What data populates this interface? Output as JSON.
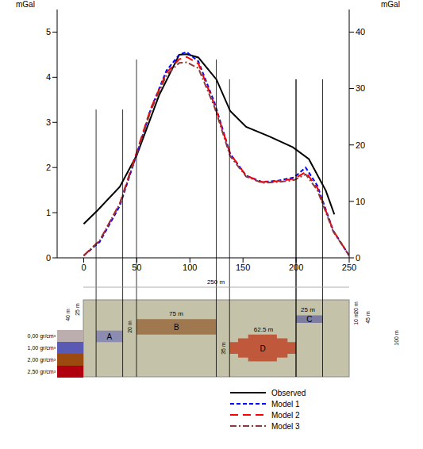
{
  "chart_data": {
    "type": "line",
    "y_label": "mGal",
    "y2_label": "mGal",
    "xlim": [
      -25,
      250
    ],
    "xticks": [
      0,
      50,
      100,
      150,
      200,
      250
    ],
    "ylim": [
      0,
      5.5
    ],
    "yticks": [
      0,
      1,
      2,
      3,
      4,
      5
    ],
    "y2lim": [
      0,
      44
    ],
    "y2ticks": [
      0,
      10,
      20,
      30,
      40
    ],
    "grid": false,
    "legend": "bottom",
    "series": [
      {
        "name": "Observed",
        "color": "#000000",
        "line_style": "solid",
        "axis": "y2",
        "x": [
          0,
          13,
          34,
          50,
          71,
          90,
          97,
          108,
          125,
          138,
          153,
          175,
          197,
          212,
          228,
          236
        ],
        "values": [
          6.0,
          8.4,
          12.6,
          18.2,
          28.8,
          36.0,
          36.1,
          35.5,
          31.6,
          26.0,
          23.2,
          21.5,
          19.6,
          17.5,
          11.9,
          7.7
        ]
      },
      {
        "name": "Model 1",
        "color": "#0000ff",
        "line_style": "dashed",
        "x": [
          0,
          15,
          34,
          50,
          63,
          78,
          90,
          97,
          108,
          123,
          138,
          153,
          168,
          183,
          198,
          209,
          220,
          235,
          250
        ],
        "values": [
          0.05,
          0.35,
          1.15,
          2.3,
          3.28,
          4.15,
          4.5,
          4.56,
          4.35,
          3.45,
          2.3,
          1.82,
          1.68,
          1.71,
          1.78,
          2.0,
          1.6,
          0.6,
          0.05
        ]
      },
      {
        "name": "Model 2",
        "color": "#ff0000",
        "line_style": "longdash",
        "x": [
          0,
          15,
          34,
          50,
          63,
          78,
          90,
          97,
          108,
          123,
          138,
          153,
          168,
          183,
          198,
          209,
          220,
          235,
          250
        ],
        "values": [
          0.05,
          0.38,
          1.2,
          2.35,
          3.3,
          4.1,
          4.4,
          4.45,
          4.3,
          3.4,
          2.3,
          1.82,
          1.68,
          1.7,
          1.75,
          1.9,
          1.55,
          0.6,
          0.05
        ]
      },
      {
        "name": "Model 3",
        "color": "#8b3a3a",
        "line_style": "dashdot",
        "x": [
          0,
          15,
          34,
          50,
          63,
          78,
          90,
          97,
          108,
          123,
          138,
          153,
          168,
          183,
          198,
          209,
          220,
          235,
          250
        ],
        "values": [
          0.05,
          0.38,
          1.2,
          2.3,
          3.25,
          4.05,
          4.32,
          4.33,
          4.2,
          3.35,
          2.25,
          1.8,
          1.66,
          1.68,
          1.72,
          1.85,
          1.5,
          0.58,
          0.05
        ]
      }
    ]
  },
  "model": {
    "width": 250,
    "depth": 100,
    "color": "#c4c2a8",
    "densities": [
      {
        "label": "0,00 gr/cm³",
        "color": "#bcaeae"
      },
      {
        "label": "1,00 gr/cm³",
        "color": "#5a5ab4"
      },
      {
        "label": "2,00 gr/cm³",
        "color": "#9c4a10"
      },
      {
        "label": "2,50 gr/cm³",
        "color": "#b00010"
      }
    ],
    "bodies": [
      {
        "label": "A",
        "color": "#8c8cb0",
        "polygon": [
          [
            12,
            40
          ],
          [
            37,
            40
          ],
          [
            37,
            55
          ],
          [
            12,
            55
          ]
        ]
      },
      {
        "label": "B",
        "color": "#a07850",
        "polygon": [
          [
            50,
            25
          ],
          [
            125,
            25
          ],
          [
            125,
            45
          ],
          [
            50,
            45
          ]
        ]
      },
      {
        "label": "C",
        "color": "#7c7ca0",
        "polygon": [
          [
            200,
            20
          ],
          [
            225,
            20
          ],
          [
            225,
            30
          ],
          [
            200,
            30
          ]
        ]
      },
      {
        "label": "D",
        "color": "#c0583c",
        "polygon": [
          [
            155,
            45
          ],
          [
            182,
            45
          ],
          [
            182,
            50
          ],
          [
            192,
            50
          ],
          [
            192,
            55
          ],
          [
            200,
            55
          ],
          [
            200,
            70
          ],
          [
            192,
            70
          ],
          [
            192,
            75
          ],
          [
            182,
            75
          ],
          [
            182,
            80
          ],
          [
            155,
            80
          ],
          [
            155,
            75
          ],
          [
            145.5,
            75
          ],
          [
            145.5,
            70
          ],
          [
            137.5,
            70
          ],
          [
            137.5,
            55
          ],
          [
            145.5,
            55
          ],
          [
            145.5,
            50
          ],
          [
            155,
            50
          ]
        ]
      }
    ],
    "dimensions": [
      "250 m",
      "75 m",
      "62.5 m",
      "25 m",
      "40 m",
      "25 m",
      "20 m",
      "35 m",
      "20 m",
      "10 m",
      "45 m",
      "100 m"
    ]
  }
}
